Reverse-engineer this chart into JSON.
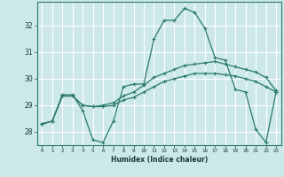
{
  "xlabel": "Humidex (Indice chaleur)",
  "bg_color": "#cce8e8",
  "grid_color": "#ffffff",
  "line_color": "#2a7a6a",
  "x_ticks": [
    0,
    1,
    2,
    3,
    4,
    5,
    6,
    7,
    8,
    9,
    10,
    11,
    12,
    13,
    14,
    15,
    16,
    17,
    18,
    19,
    20,
    21,
    22,
    23
  ],
  "y_ticks": [
    28,
    29,
    30,
    31,
    32
  ],
  "ylim": [
    27.5,
    32.9
  ],
  "xlim": [
    -0.5,
    23.5
  ],
  "series1_x": [
    0,
    1,
    2,
    3,
    4,
    5,
    6,
    7,
    8,
    9,
    10,
    11,
    12,
    13,
    14,
    15,
    16,
    17,
    18,
    19,
    20,
    21,
    22,
    23
  ],
  "series1_y": [
    28.3,
    28.4,
    29.4,
    29.4,
    28.8,
    27.7,
    27.6,
    28.4,
    29.7,
    29.8,
    29.8,
    31.5,
    32.2,
    32.2,
    32.65,
    32.5,
    31.9,
    30.8,
    30.7,
    29.6,
    29.5,
    28.1,
    27.6,
    29.5
  ],
  "series2_x": [
    0,
    1,
    2,
    3,
    4,
    5,
    6,
    7,
    8,
    9,
    10,
    11,
    12,
    13,
    14,
    15,
    16,
    17,
    18,
    19,
    20,
    21,
    22,
    23
  ],
  "series2_y": [
    28.3,
    28.4,
    29.35,
    29.35,
    29.0,
    28.95,
    29.0,
    29.1,
    29.35,
    29.5,
    29.75,
    30.05,
    30.2,
    30.35,
    30.5,
    30.55,
    30.6,
    30.65,
    30.55,
    30.45,
    30.35,
    30.25,
    30.05,
    29.55
  ],
  "series3_x": [
    0,
    1,
    2,
    3,
    4,
    5,
    6,
    7,
    8,
    9,
    10,
    11,
    12,
    13,
    14,
    15,
    16,
    17,
    18,
    19,
    20,
    21,
    22,
    23
  ],
  "series3_y": [
    28.3,
    28.4,
    29.35,
    29.35,
    29.0,
    28.95,
    28.95,
    29.0,
    29.2,
    29.3,
    29.5,
    29.7,
    29.9,
    30.0,
    30.1,
    30.2,
    30.2,
    30.2,
    30.15,
    30.1,
    30.0,
    29.9,
    29.7,
    29.5
  ]
}
